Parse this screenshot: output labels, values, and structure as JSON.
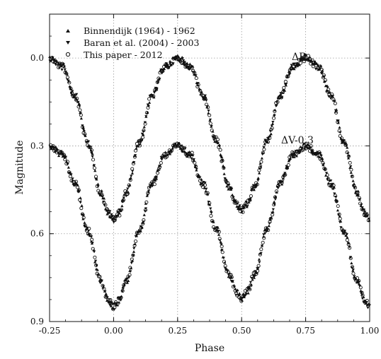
{
  "chart_data": {
    "type": "scatter",
    "title": "",
    "xlabel": "Phase",
    "ylabel": "Magnitude",
    "xlim": [
      -0.25,
      1.0
    ],
    "ylim": [
      0.9,
      -0.15
    ],
    "y_inverted": true,
    "grid": true,
    "grid_style": "dotted",
    "legend_position": "top-left",
    "x_ticks": [
      -0.25,
      0.0,
      0.25,
      0.5,
      0.75,
      1.0
    ],
    "x_tick_labels": [
      "-0.25",
      "0.00",
      "0.25",
      "0.50",
      "0.75",
      "1.00"
    ],
    "y_ticks": [
      0.0,
      0.3,
      0.6,
      0.9
    ],
    "y_tick_labels": [
      "0.0",
      "0.3",
      "0.6",
      "0.9"
    ],
    "series": [
      {
        "name": "Binnendijk (1964) - 1962",
        "marker": "triangle-up"
      },
      {
        "name": "Baran et al. (2004) - 2003",
        "marker": "triangle-down"
      },
      {
        "name": "This paper - 2012",
        "marker": "circle-open"
      }
    ],
    "curves": [
      {
        "label": "ΔB",
        "phase": [
          -0.25,
          -0.2,
          -0.15,
          -0.1,
          -0.05,
          -0.02,
          0.0,
          0.02,
          0.05,
          0.1,
          0.15,
          0.2,
          0.25,
          0.3,
          0.35,
          0.4,
          0.45,
          0.48,
          0.5,
          0.52,
          0.55,
          0.6,
          0.65,
          0.7,
          0.75,
          0.8,
          0.85,
          0.9,
          0.95,
          0.98,
          1.0
        ],
        "magnitude": [
          0.0,
          0.03,
          0.13,
          0.29,
          0.46,
          0.53,
          0.55,
          0.53,
          0.46,
          0.29,
          0.13,
          0.03,
          0.0,
          0.03,
          0.13,
          0.28,
          0.44,
          0.5,
          0.52,
          0.5,
          0.44,
          0.28,
          0.13,
          0.03,
          0.0,
          0.03,
          0.13,
          0.29,
          0.46,
          0.53,
          0.55
        ]
      },
      {
        "label": "ΔV-0.3",
        "phase": [
          -0.25,
          -0.2,
          -0.15,
          -0.1,
          -0.05,
          -0.02,
          0.0,
          0.02,
          0.05,
          0.1,
          0.15,
          0.2,
          0.25,
          0.3,
          0.35,
          0.4,
          0.45,
          0.48,
          0.5,
          0.52,
          0.55,
          0.6,
          0.65,
          0.7,
          0.75,
          0.8,
          0.85,
          0.9,
          0.95,
          0.98,
          1.0
        ],
        "magnitude": [
          0.3,
          0.33,
          0.43,
          0.59,
          0.76,
          0.83,
          0.85,
          0.83,
          0.76,
          0.59,
          0.43,
          0.33,
          0.3,
          0.33,
          0.43,
          0.58,
          0.74,
          0.8,
          0.82,
          0.8,
          0.74,
          0.58,
          0.43,
          0.33,
          0.3,
          0.33,
          0.43,
          0.59,
          0.76,
          0.83,
          0.85
        ]
      }
    ]
  },
  "colors": {
    "marker": "#111111",
    "grid": "#9a9a9a",
    "axis": "#111111",
    "background": "#ffffff"
  }
}
